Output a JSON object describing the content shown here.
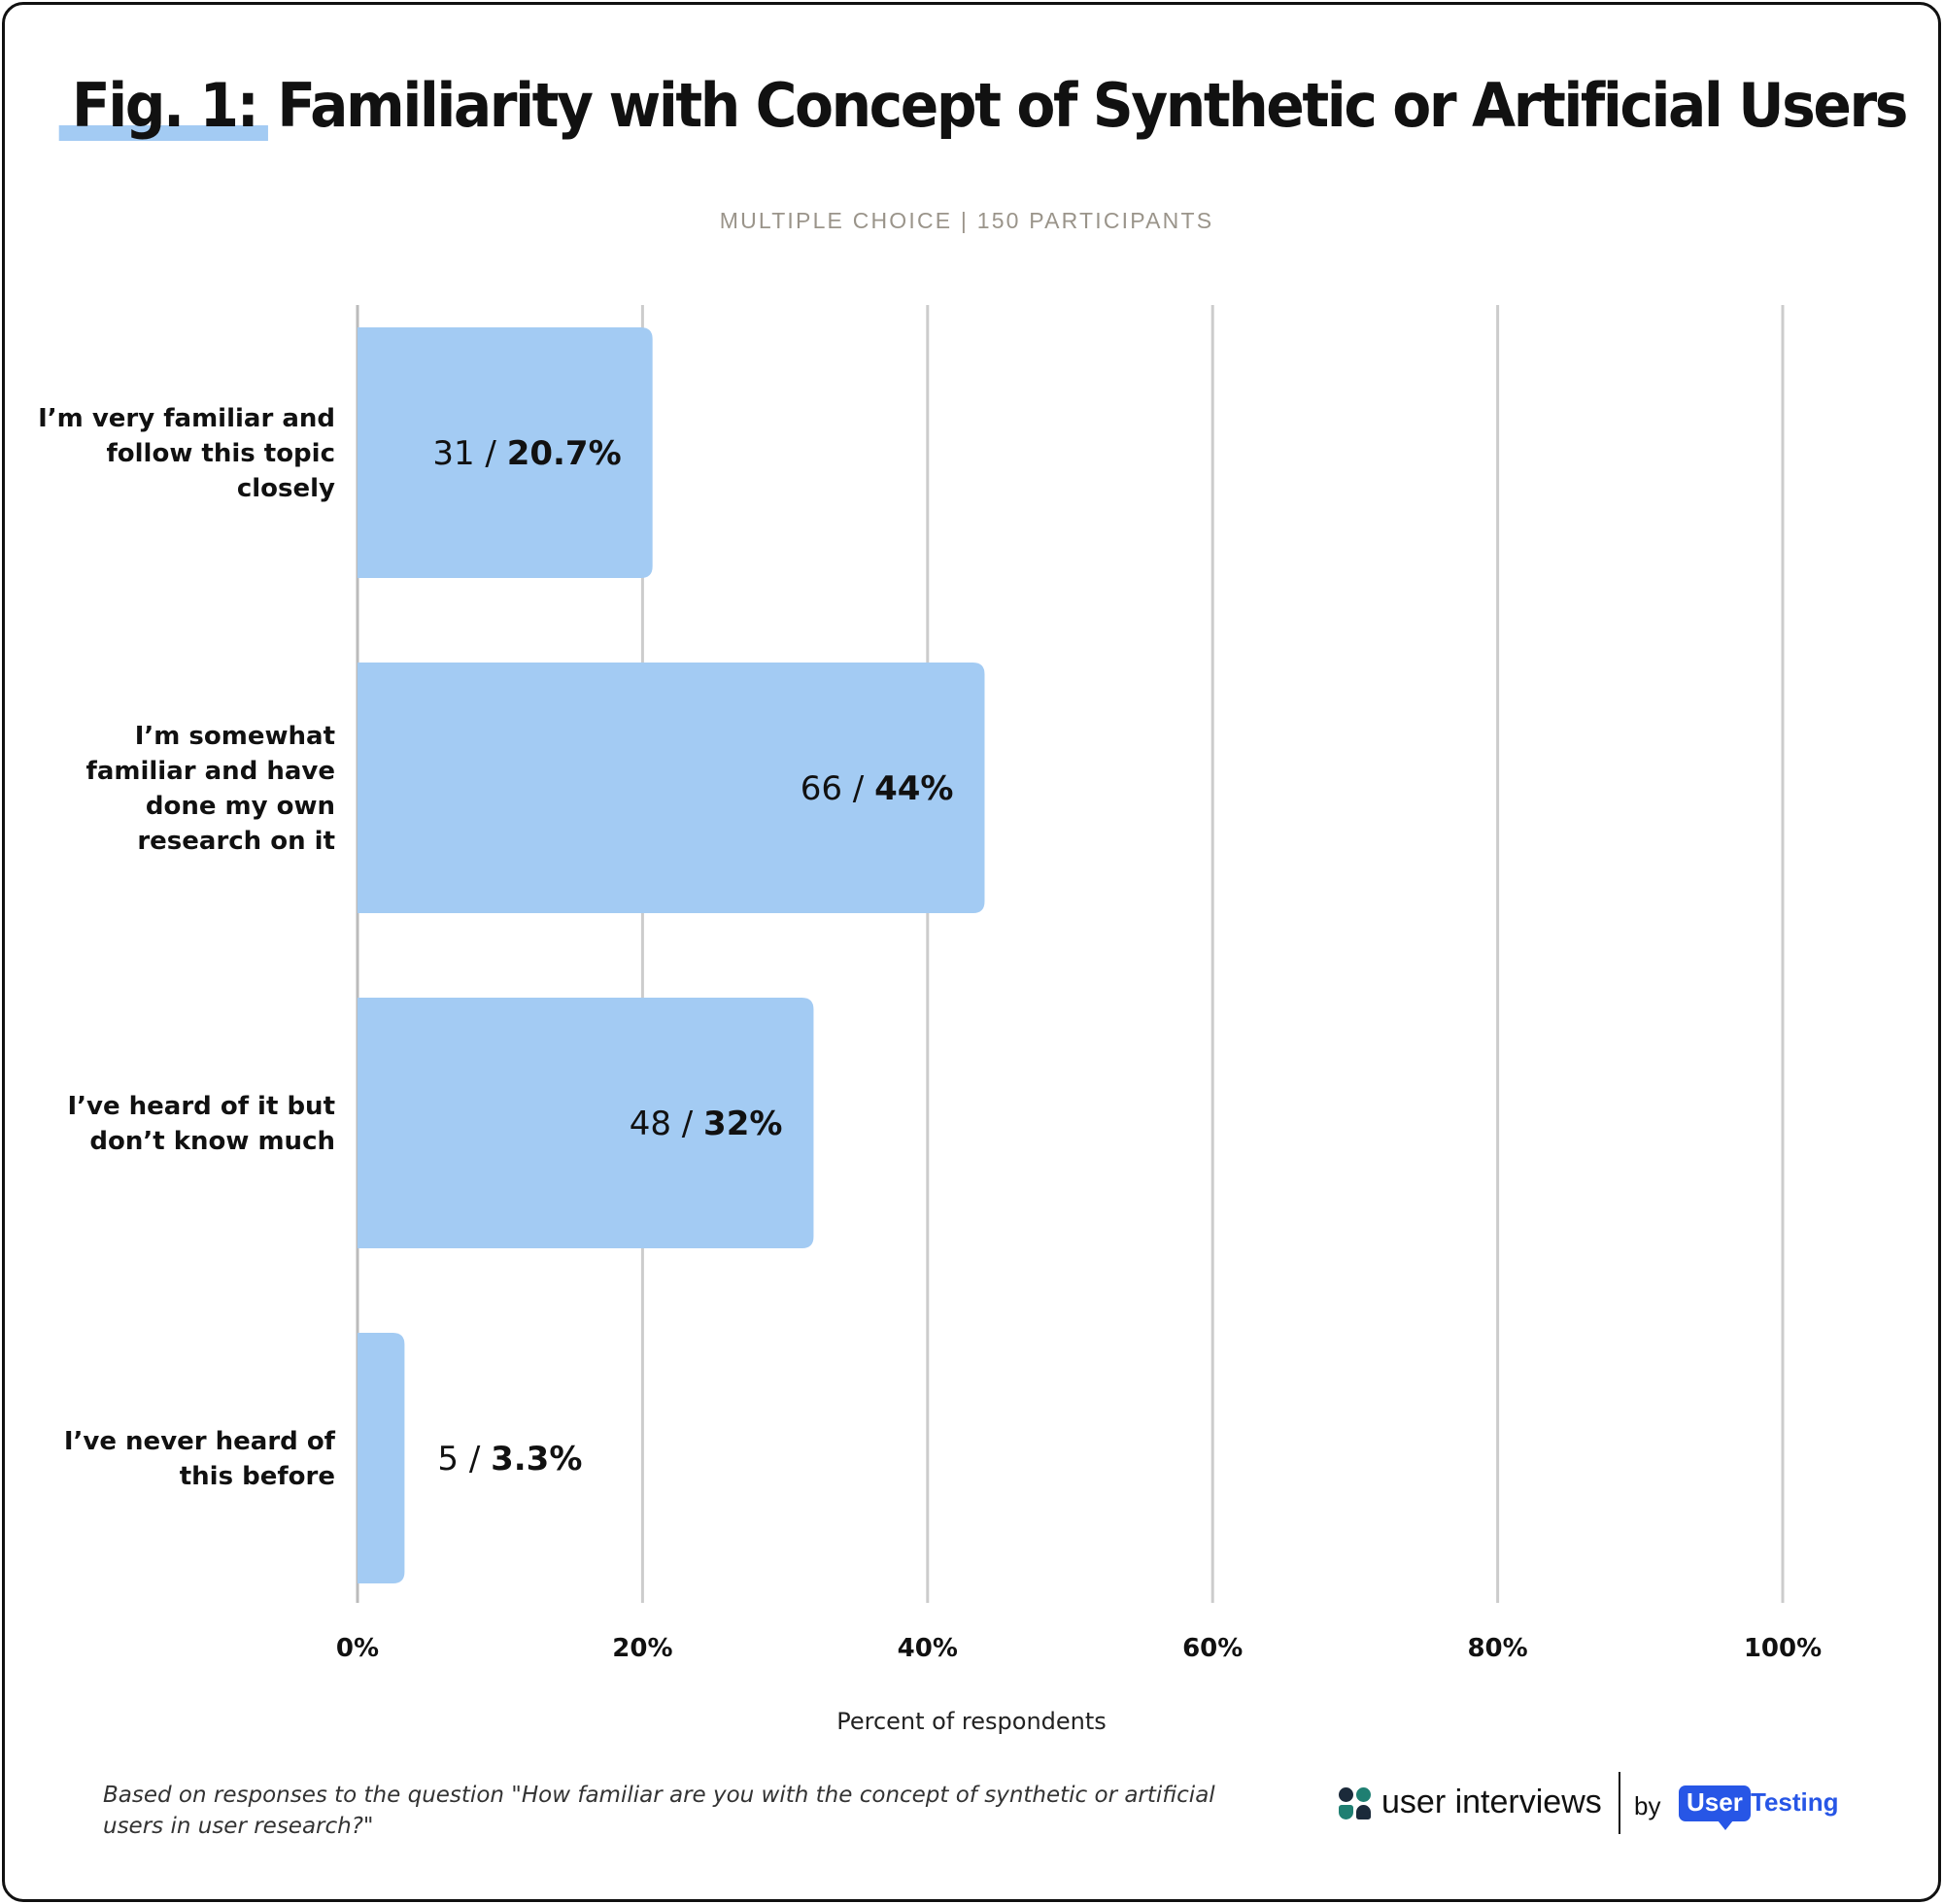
{
  "header": {
    "title_prefix": "Fig. 1:",
    "title_main": "Familiarity with Concept of Synthetic or Artificial Users",
    "subtitle": "MULTIPLE CHOICE | 150 PARTICIPANTS"
  },
  "chart_data": {
    "type": "bar",
    "orientation": "horizontal",
    "title": "Fig. 1: Familiarity with Concept of Synthetic or Artificial Users",
    "subtitle": "MULTIPLE CHOICE | 150 PARTICIPANTS",
    "xlabel": "Percent of respondents",
    "ylabel": "",
    "xlim": [
      0,
      100
    ],
    "x_ticks": [
      "0%",
      "20%",
      "40%",
      "60%",
      "80%",
      "100%"
    ],
    "grid": true,
    "bar_color": "#a3cbf3",
    "categories": [
      [
        "I’m very familiar and",
        "follow this topic",
        "closely"
      ],
      [
        "I’m somewhat",
        "familiar and have",
        "done my own",
        "research on it"
      ],
      [
        "I’ve heard of it but",
        "don’t know much"
      ],
      [
        "I’ve never heard of",
        "this before"
      ]
    ],
    "counts": [
      31,
      66,
      48,
      5
    ],
    "values": [
      20.7,
      44,
      32,
      3.3
    ],
    "pct_labels": [
      "20.7%",
      "44%",
      "32%",
      "3.3%"
    ]
  },
  "footer": {
    "note": "Based on responses to the question \"How familiar are you with the concept of synthetic or artificial users in user research?\"",
    "brand_name": "user interviews",
    "brand_by": "by",
    "brand_user": "User",
    "brand_testing": "Testing"
  },
  "colors": {
    "bar": "#a3cbf3",
    "grid": "#cccccc",
    "accent_blue": "#2756e6",
    "brand_dark": "#1b2a3a",
    "brand_teal": "#1f7f72"
  }
}
